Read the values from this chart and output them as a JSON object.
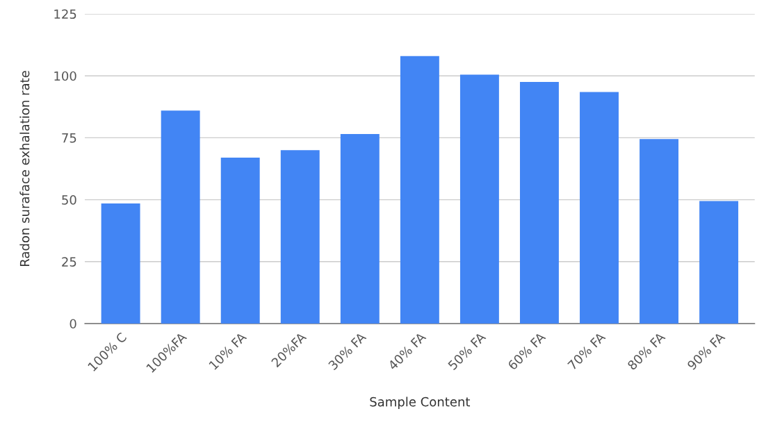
{
  "chart_data": {
    "type": "bar",
    "xlabel": "Sample Content",
    "ylabel": "Radon suraface exhalation rate",
    "categories": [
      "100% C",
      "100%FA",
      "10% FA",
      "20%FA",
      "30% FA",
      "40% FA",
      "50% FA",
      "60% FA",
      "70% FA",
      "80% FA",
      "90% FA"
    ],
    "values": [
      48.5,
      86,
      67,
      70,
      76.5,
      108,
      100.5,
      97.5,
      93.5,
      74.5,
      49.5
    ],
    "color": "#4285f4",
    "ylim": [
      0,
      125
    ],
    "yticks": [
      0,
      25,
      50,
      75,
      100,
      125
    ],
    "grid": "y"
  }
}
